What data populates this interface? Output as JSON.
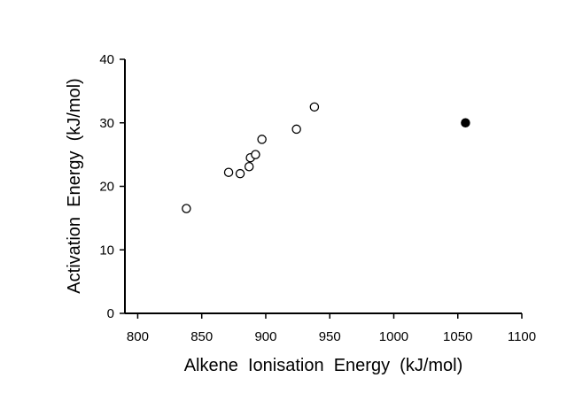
{
  "chart_data": {
    "type": "scatter",
    "title": "",
    "xlabel": "Alkene  Ionisation  Energy  (kJ/mol)",
    "ylabel": "Activation  Energy  (kJ/mol)",
    "xlim": [
      790,
      1100
    ],
    "ylim": [
      0,
      40
    ],
    "xticks": [
      800,
      850,
      900,
      950,
      1000,
      1050,
      1100
    ],
    "yticks": [
      0,
      10,
      20,
      30,
      40
    ],
    "xtick_labels": [
      "800",
      "850",
      "900",
      "950",
      "1000",
      "1050",
      "1100"
    ],
    "ytick_labels": [
      "0",
      "10",
      "20",
      "30",
      "40"
    ],
    "grid": false,
    "series": [
      {
        "marker": "open-circle",
        "points": [
          {
            "x": 838,
            "y": 16.5
          },
          {
            "x": 871,
            "y": 22.2
          },
          {
            "x": 880,
            "y": 22.0
          },
          {
            "x": 887,
            "y": 23.1
          },
          {
            "x": 888,
            "y": 24.5
          },
          {
            "x": 892,
            "y": 25.0
          },
          {
            "x": 897,
            "y": 27.4
          },
          {
            "x": 924,
            "y": 29.0
          },
          {
            "x": 938,
            "y": 32.5
          }
        ]
      },
      {
        "marker": "filled-circle",
        "points": [
          {
            "x": 1056,
            "y": 30.0
          }
        ]
      }
    ]
  }
}
